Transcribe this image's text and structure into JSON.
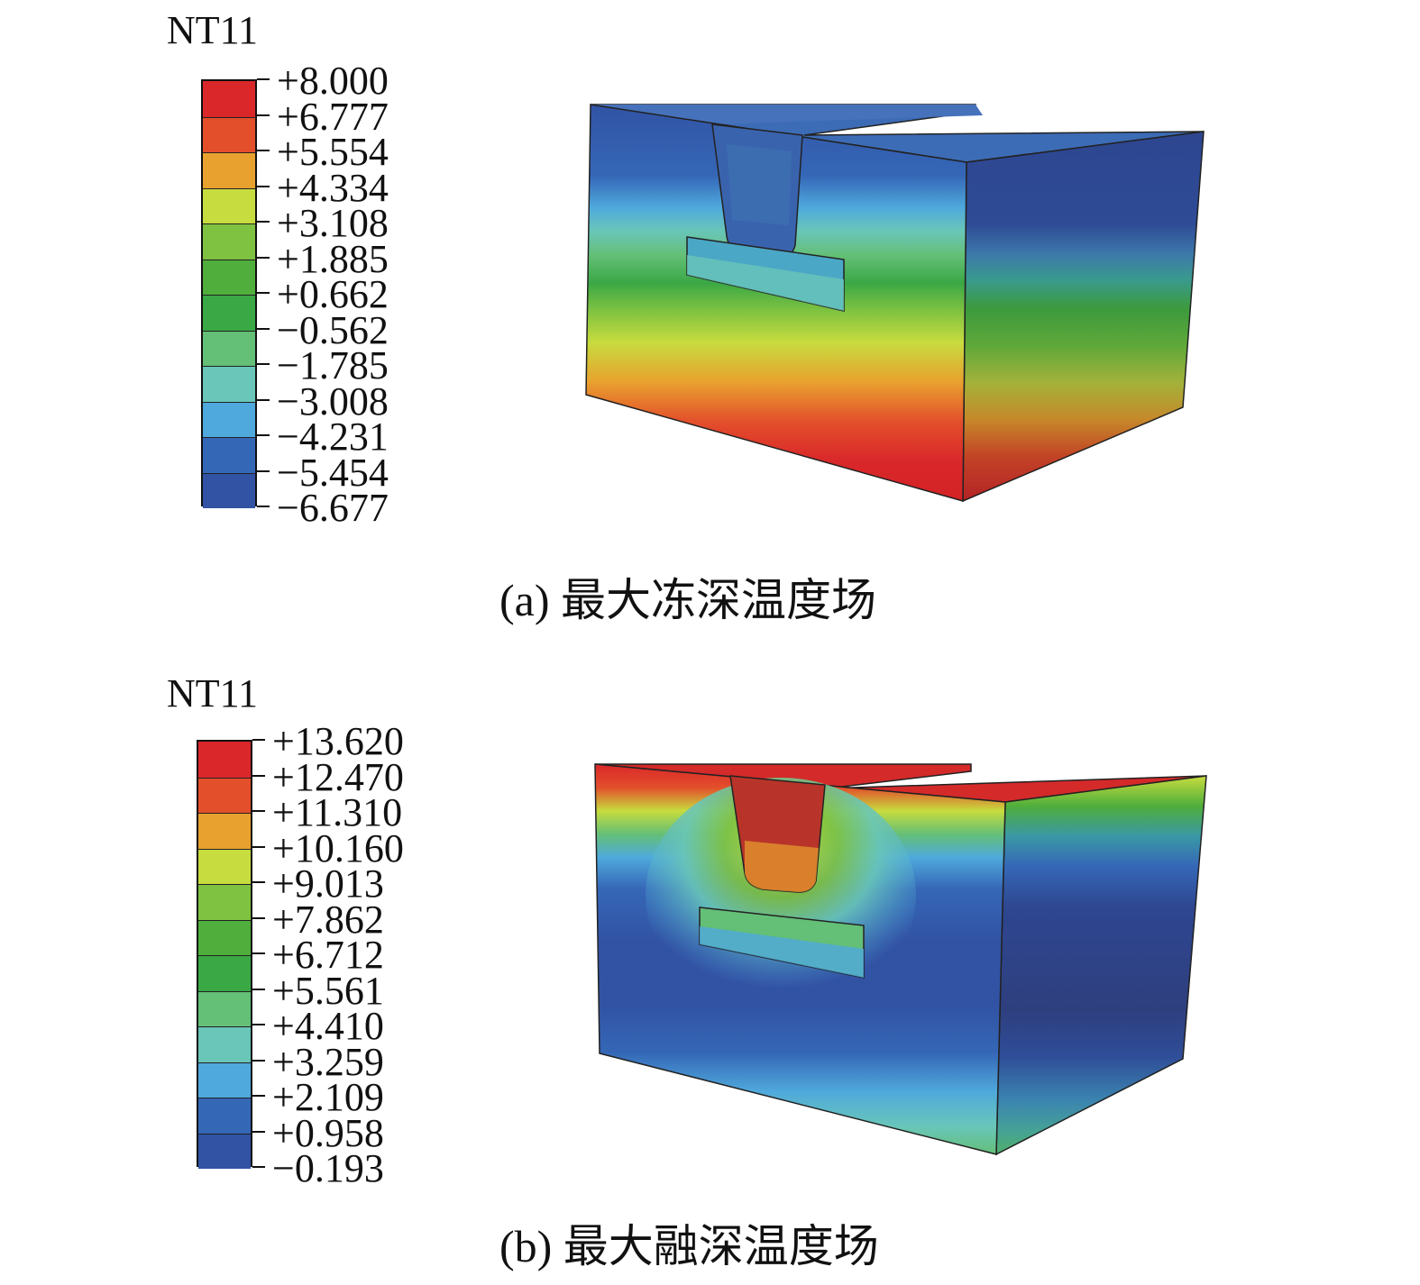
{
  "figures": [
    {
      "id": "a",
      "legend_title": "NT11",
      "legend_values": [
        "+8.000",
        "+6.777",
        "+5.554",
        "+4.334",
        "+3.108",
        "+1.885",
        "+0.662",
        "−0.562",
        "−1.785",
        "−3.008",
        "−4.231",
        "−5.454",
        "−6.677"
      ],
      "legend_colors": [
        "#d9272a",
        "#e34f2b",
        "#e8a12e",
        "#c7dc3e",
        "#7fc241",
        "#4fae3c",
        "#3aa845",
        "#64bf77",
        "#69c6b8",
        "#4fa9dc",
        "#3567b7",
        "#3253a4"
      ],
      "caption": "(a) 最大冻深温度场"
    },
    {
      "id": "b",
      "legend_title": "NT11",
      "legend_values": [
        "+13.620",
        "+12.470",
        "+11.310",
        "+10.160",
        "+9.013",
        "+7.862",
        "+6.712",
        "+5.561",
        "+4.410",
        "+3.259",
        "+2.109",
        "+0.958",
        "−0.193"
      ],
      "legend_colors": [
        "#d9272a",
        "#e34f2b",
        "#e8a12e",
        "#c7dc3e",
        "#7fc241",
        "#4fae3c",
        "#3aa845",
        "#64bf77",
        "#69c6b8",
        "#4fa9dc",
        "#3567b7",
        "#3253a4"
      ],
      "caption": "(b) 最大融深温度场"
    }
  ]
}
